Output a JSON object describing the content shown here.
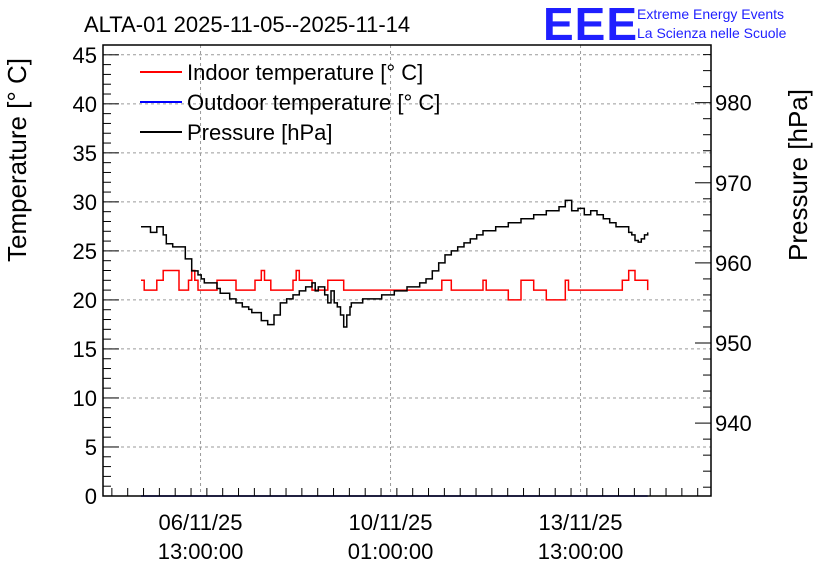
{
  "chart_data": {
    "type": "line",
    "title": "ALTA-01 2025-11-05--2025-11-14",
    "ylabel_left": "Temperature [° C]",
    "ylabel_right": "Pressure [hPa]",
    "y_left_lim": [
      0,
      46
    ],
    "y_right_lim": [
      930.9,
      987.2
    ],
    "y_left_ticks": [
      0,
      5,
      10,
      15,
      20,
      25,
      30,
      35,
      40,
      45
    ],
    "y_right_ticks": [
      940,
      950,
      960,
      970,
      980
    ],
    "x_lim": [
      0,
      9.6
    ],
    "x_ticks": [
      {
        "x": 1.54,
        "line1": "06/11/25",
        "line2": "13:00:00"
      },
      {
        "x": 4.54,
        "line1": "10/11/25",
        "line2": "01:00:00"
      },
      {
        "x": 7.54,
        "line1": "13/11/25",
        "line2": "13:00:00"
      }
    ],
    "legend": [
      {
        "name": "Indoor temperature [° C]",
        "color": "#ff0000"
      },
      {
        "name": "Outdoor temperature [° C]",
        "color": "#0000ff"
      },
      {
        "name": "Pressure [hPa]",
        "color": "#000000"
      }
    ],
    "grid": true,
    "series": [
      {
        "name": "Indoor temperature [° C]",
        "axis": "left",
        "color": "#ff0000",
        "x": [
          0.6,
          0.65,
          0.75,
          0.85,
          0.95,
          1.0,
          1.2,
          1.3,
          1.35,
          1.4,
          1.45,
          1.5,
          1.6,
          1.8,
          2.0,
          2.1,
          2.25,
          2.4,
          2.5,
          2.55,
          2.65,
          2.8,
          2.9,
          3.0,
          3.05,
          3.1,
          3.3,
          3.4,
          3.5,
          3.55,
          3.6,
          3.8,
          3.9,
          4.0,
          4.4,
          4.6,
          4.8,
          5.0,
          5.3,
          5.35,
          5.5,
          5.8,
          6.0,
          6.05,
          6.3,
          6.4,
          6.5,
          6.6,
          6.7,
          6.8,
          6.9,
          7.0,
          7.2,
          7.3,
          7.35,
          7.5,
          7.8,
          8.1,
          8.2,
          8.3,
          8.4,
          8.5,
          8.6
        ],
        "y": [
          22,
          21,
          21,
          22,
          23,
          23,
          21,
          21,
          22,
          23,
          22,
          21,
          21,
          22,
          22,
          21,
          21,
          22,
          23,
          22,
          21,
          21,
          21,
          22,
          23,
          22,
          21,
          21,
          21,
          22,
          22,
          21,
          21,
          21,
          21,
          21,
          21,
          21,
          21,
          22,
          21,
          21,
          22,
          21,
          21,
          20,
          20,
          22,
          22,
          21,
          21,
          20,
          20,
          22,
          21,
          21,
          21,
          21,
          22,
          23,
          22,
          22,
          21
        ],
        "sample_values_printed": false
      },
      {
        "name": "Outdoor temperature [° C]",
        "axis": "left",
        "color": "#0000ff",
        "x": [
          0.6,
          8.6
        ],
        "y": [
          0,
          0
        ]
      },
      {
        "name": "Pressure [hPa]",
        "axis": "right",
        "color": "#000000",
        "x": [
          0.6,
          0.75,
          0.85,
          0.95,
          1.0,
          1.1,
          1.3,
          1.4,
          1.5,
          1.55,
          1.6,
          1.8,
          1.85,
          2.0,
          2.1,
          2.2,
          2.3,
          2.35,
          2.5,
          2.6,
          2.7,
          2.8,
          2.9,
          3.0,
          3.1,
          3.2,
          3.3,
          3.35,
          3.4,
          3.5,
          3.55,
          3.6,
          3.65,
          3.7,
          3.75,
          3.8,
          3.85,
          3.9,
          3.92,
          4.1,
          4.4,
          4.6,
          4.8,
          5.0,
          5.1,
          5.2,
          5.3,
          5.4,
          5.5,
          5.6,
          5.7,
          5.8,
          5.9,
          6.0,
          6.2,
          6.4,
          6.6,
          6.8,
          7.0,
          7.2,
          7.3,
          7.4,
          7.5,
          7.6,
          7.7,
          7.8,
          7.9,
          8.0,
          8.1,
          8.2,
          8.3,
          8.35,
          8.4,
          8.45,
          8.5,
          8.55,
          8.6
        ],
        "y": [
          964.5,
          963.8,
          964.5,
          963.5,
          962.4,
          962.0,
          960.5,
          959.0,
          958.5,
          958.0,
          957.5,
          956.8,
          956.2,
          955.5,
          955.0,
          954.5,
          954.2,
          953.8,
          952.8,
          952.3,
          953.5,
          955.0,
          955.5,
          956.0,
          956.5,
          957.0,
          957.5,
          956.5,
          957.0,
          956.0,
          955.0,
          956.5,
          955.0,
          954.5,
          953.5,
          952.0,
          953.5,
          954.5,
          955.0,
          955.5,
          956.0,
          956.5,
          957.0,
          957.5,
          958.0,
          959.0,
          960.0,
          961.0,
          961.5,
          962.0,
          962.5,
          963.0,
          963.5,
          964.0,
          964.5,
          965.0,
          965.5,
          966.0,
          966.5,
          967.0,
          967.8,
          966.5,
          966.8,
          966.0,
          966.5,
          966.0,
          965.5,
          965.0,
          964.5,
          964.5,
          963.8,
          963.5,
          962.8,
          962.6,
          963.0,
          963.5,
          963.8
        ]
      }
    ]
  },
  "logo": {
    "text": "EEE",
    "line1": "Extreme Energy Events",
    "line2": "La Scienza nelle Scuole",
    "color": "#1f1fff"
  }
}
